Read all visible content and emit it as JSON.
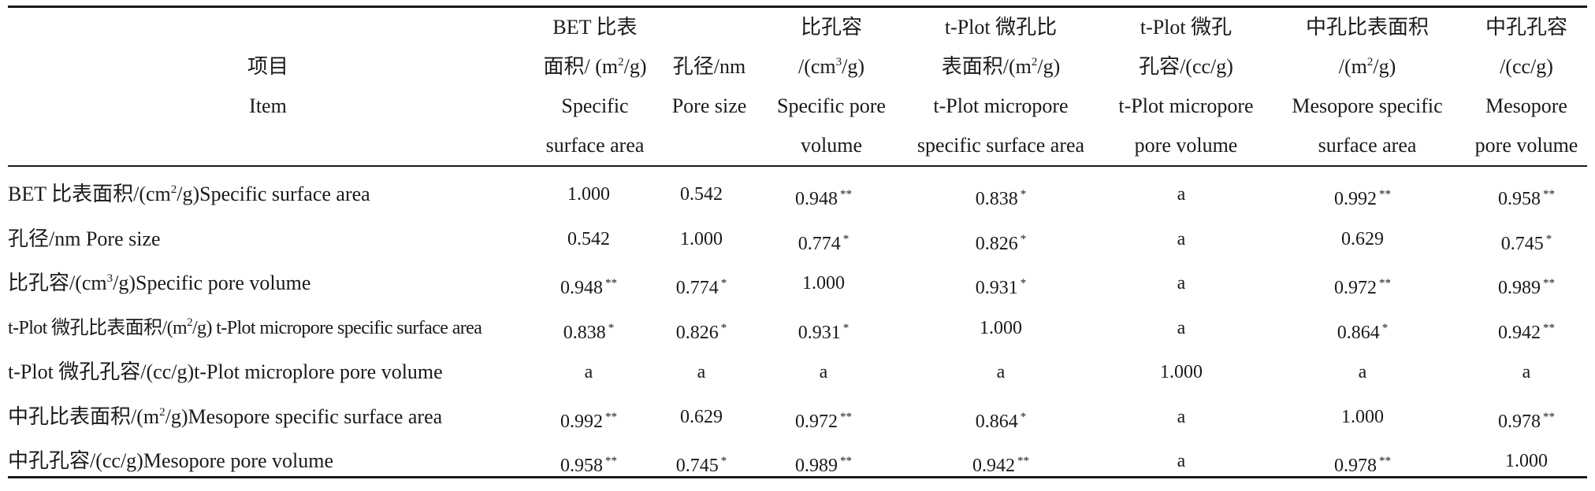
{
  "header": {
    "item": [
      "项目",
      "Item"
    ],
    "bet": [
      "BET 比表",
      "面积/ (m²/g)",
      "Specific",
      "surface area"
    ],
    "pore": [
      "孔径/nm",
      "Pore size"
    ],
    "spv": [
      "比孔容",
      "/(cm³/g)",
      "Specific pore",
      "volume"
    ],
    "tmsa": [
      "t-Plot 微孔比",
      "表面积/(m²/g)",
      "t-Plot micropore",
      "specific surface area"
    ],
    "tmpv": [
      "t-Plot 微孔",
      "孔容/(cc/g)",
      "t-Plot micropore",
      "pore volume"
    ],
    "mssa": [
      "中孔比表面积",
      "/(m²/g)",
      "Mesopore specific",
      "surface area"
    ],
    "mpv": [
      "中孔孔容",
      "/(cc/g)",
      "Mesopore",
      "pore volume"
    ]
  },
  "rows": [
    {
      "label": "BET 比表面积/(cm²/g)Specific surface area",
      "cells": [
        {
          "v": "1.000",
          "s": ""
        },
        {
          "v": "0.542",
          "s": ""
        },
        {
          "v": "0.948",
          "s": "**"
        },
        {
          "v": "0.838",
          "s": "*"
        },
        {
          "v": "a",
          "s": ""
        },
        {
          "v": "0.992",
          "s": "**"
        },
        {
          "v": "0.958",
          "s": "**"
        }
      ]
    },
    {
      "label": "孔径/nm Pore size",
      "cells": [
        {
          "v": "0.542",
          "s": ""
        },
        {
          "v": "1.000",
          "s": ""
        },
        {
          "v": "0.774",
          "s": "*"
        },
        {
          "v": "0.826",
          "s": "*"
        },
        {
          "v": "a",
          "s": ""
        },
        {
          "v": "0.629",
          "s": ""
        },
        {
          "v": "0.745",
          "s": "*"
        }
      ]
    },
    {
      "label": "比孔容/(cm³/g)Specific pore volume",
      "cells": [
        {
          "v": "0.948",
          "s": "**"
        },
        {
          "v": "0.774",
          "s": "*"
        },
        {
          "v": "1.000",
          "s": ""
        },
        {
          "v": "0.931",
          "s": "*"
        },
        {
          "v": "a",
          "s": ""
        },
        {
          "v": "0.972",
          "s": "**"
        },
        {
          "v": "0.989",
          "s": "**"
        }
      ]
    },
    {
      "label": "t-Plot 微孔比表面积/(m²/g) t-Plot micropore specific surface area",
      "cells": [
        {
          "v": "0.838",
          "s": "*"
        },
        {
          "v": "0.826",
          "s": "*"
        },
        {
          "v": "0.931",
          "s": "*"
        },
        {
          "v": "1.000",
          "s": ""
        },
        {
          "v": "a",
          "s": ""
        },
        {
          "v": "0.864",
          "s": "*"
        },
        {
          "v": "0.942",
          "s": "**"
        }
      ]
    },
    {
      "label": "t-Plot 微孔孔容/(cc/g)t-Plot microplore pore volume",
      "cells": [
        {
          "v": "a",
          "s": ""
        },
        {
          "v": "a",
          "s": ""
        },
        {
          "v": "a",
          "s": ""
        },
        {
          "v": "a",
          "s": ""
        },
        {
          "v": "1.000",
          "s": ""
        },
        {
          "v": "a",
          "s": ""
        },
        {
          "v": "a",
          "s": ""
        }
      ]
    },
    {
      "label": "中孔比表面积/(m²/g)Mesopore specific surface area",
      "cells": [
        {
          "v": "0.992",
          "s": "**"
        },
        {
          "v": "0.629",
          "s": ""
        },
        {
          "v": "0.972",
          "s": "**"
        },
        {
          "v": "0.864",
          "s": "*"
        },
        {
          "v": "a",
          "s": ""
        },
        {
          "v": "1.000",
          "s": ""
        },
        {
          "v": "0.978",
          "s": "**"
        }
      ]
    },
    {
      "label": "中孔孔容/(cc/g)Mesopore pore volume",
      "cells": [
        {
          "v": "0.958",
          "s": "**"
        },
        {
          "v": "0.745",
          "s": "*"
        },
        {
          "v": "0.989",
          "s": "**"
        },
        {
          "v": "0.942",
          "s": "**"
        },
        {
          "v": "a",
          "s": ""
        },
        {
          "v": "0.978",
          "s": "**"
        },
        {
          "v": "1.000",
          "s": ""
        }
      ]
    }
  ]
}
